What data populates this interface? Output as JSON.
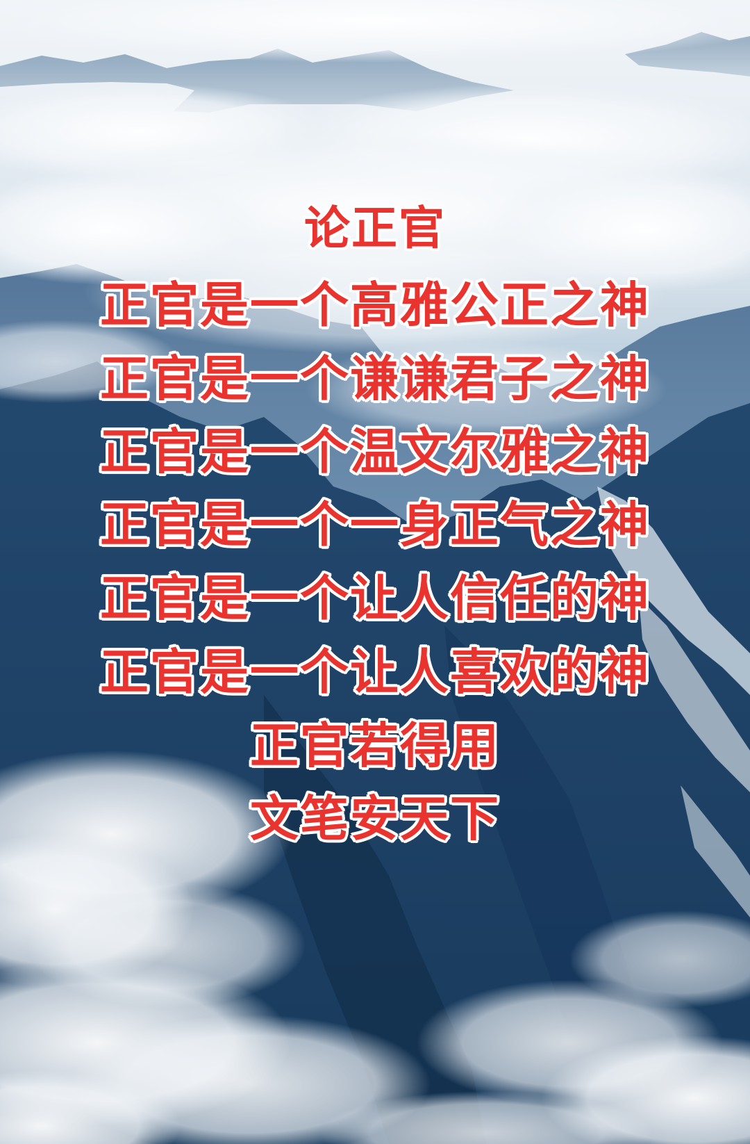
{
  "poem": {
    "title": "论正官",
    "lines": [
      "正官是一个高雅公正之神",
      "正官是一个谦谦君子之神",
      "正官是一个温文尔雅之神",
      "正官是一个一身正气之神",
      "正官是一个让人信任的神",
      "正官是一个让人喜欢的神",
      "正官若得用",
      "文笔安天下"
    ]
  },
  "colors": {
    "text": "#e8332f",
    "outline": "#ffffff",
    "sky": "#f2f5f8",
    "mountain": "#22496f"
  }
}
